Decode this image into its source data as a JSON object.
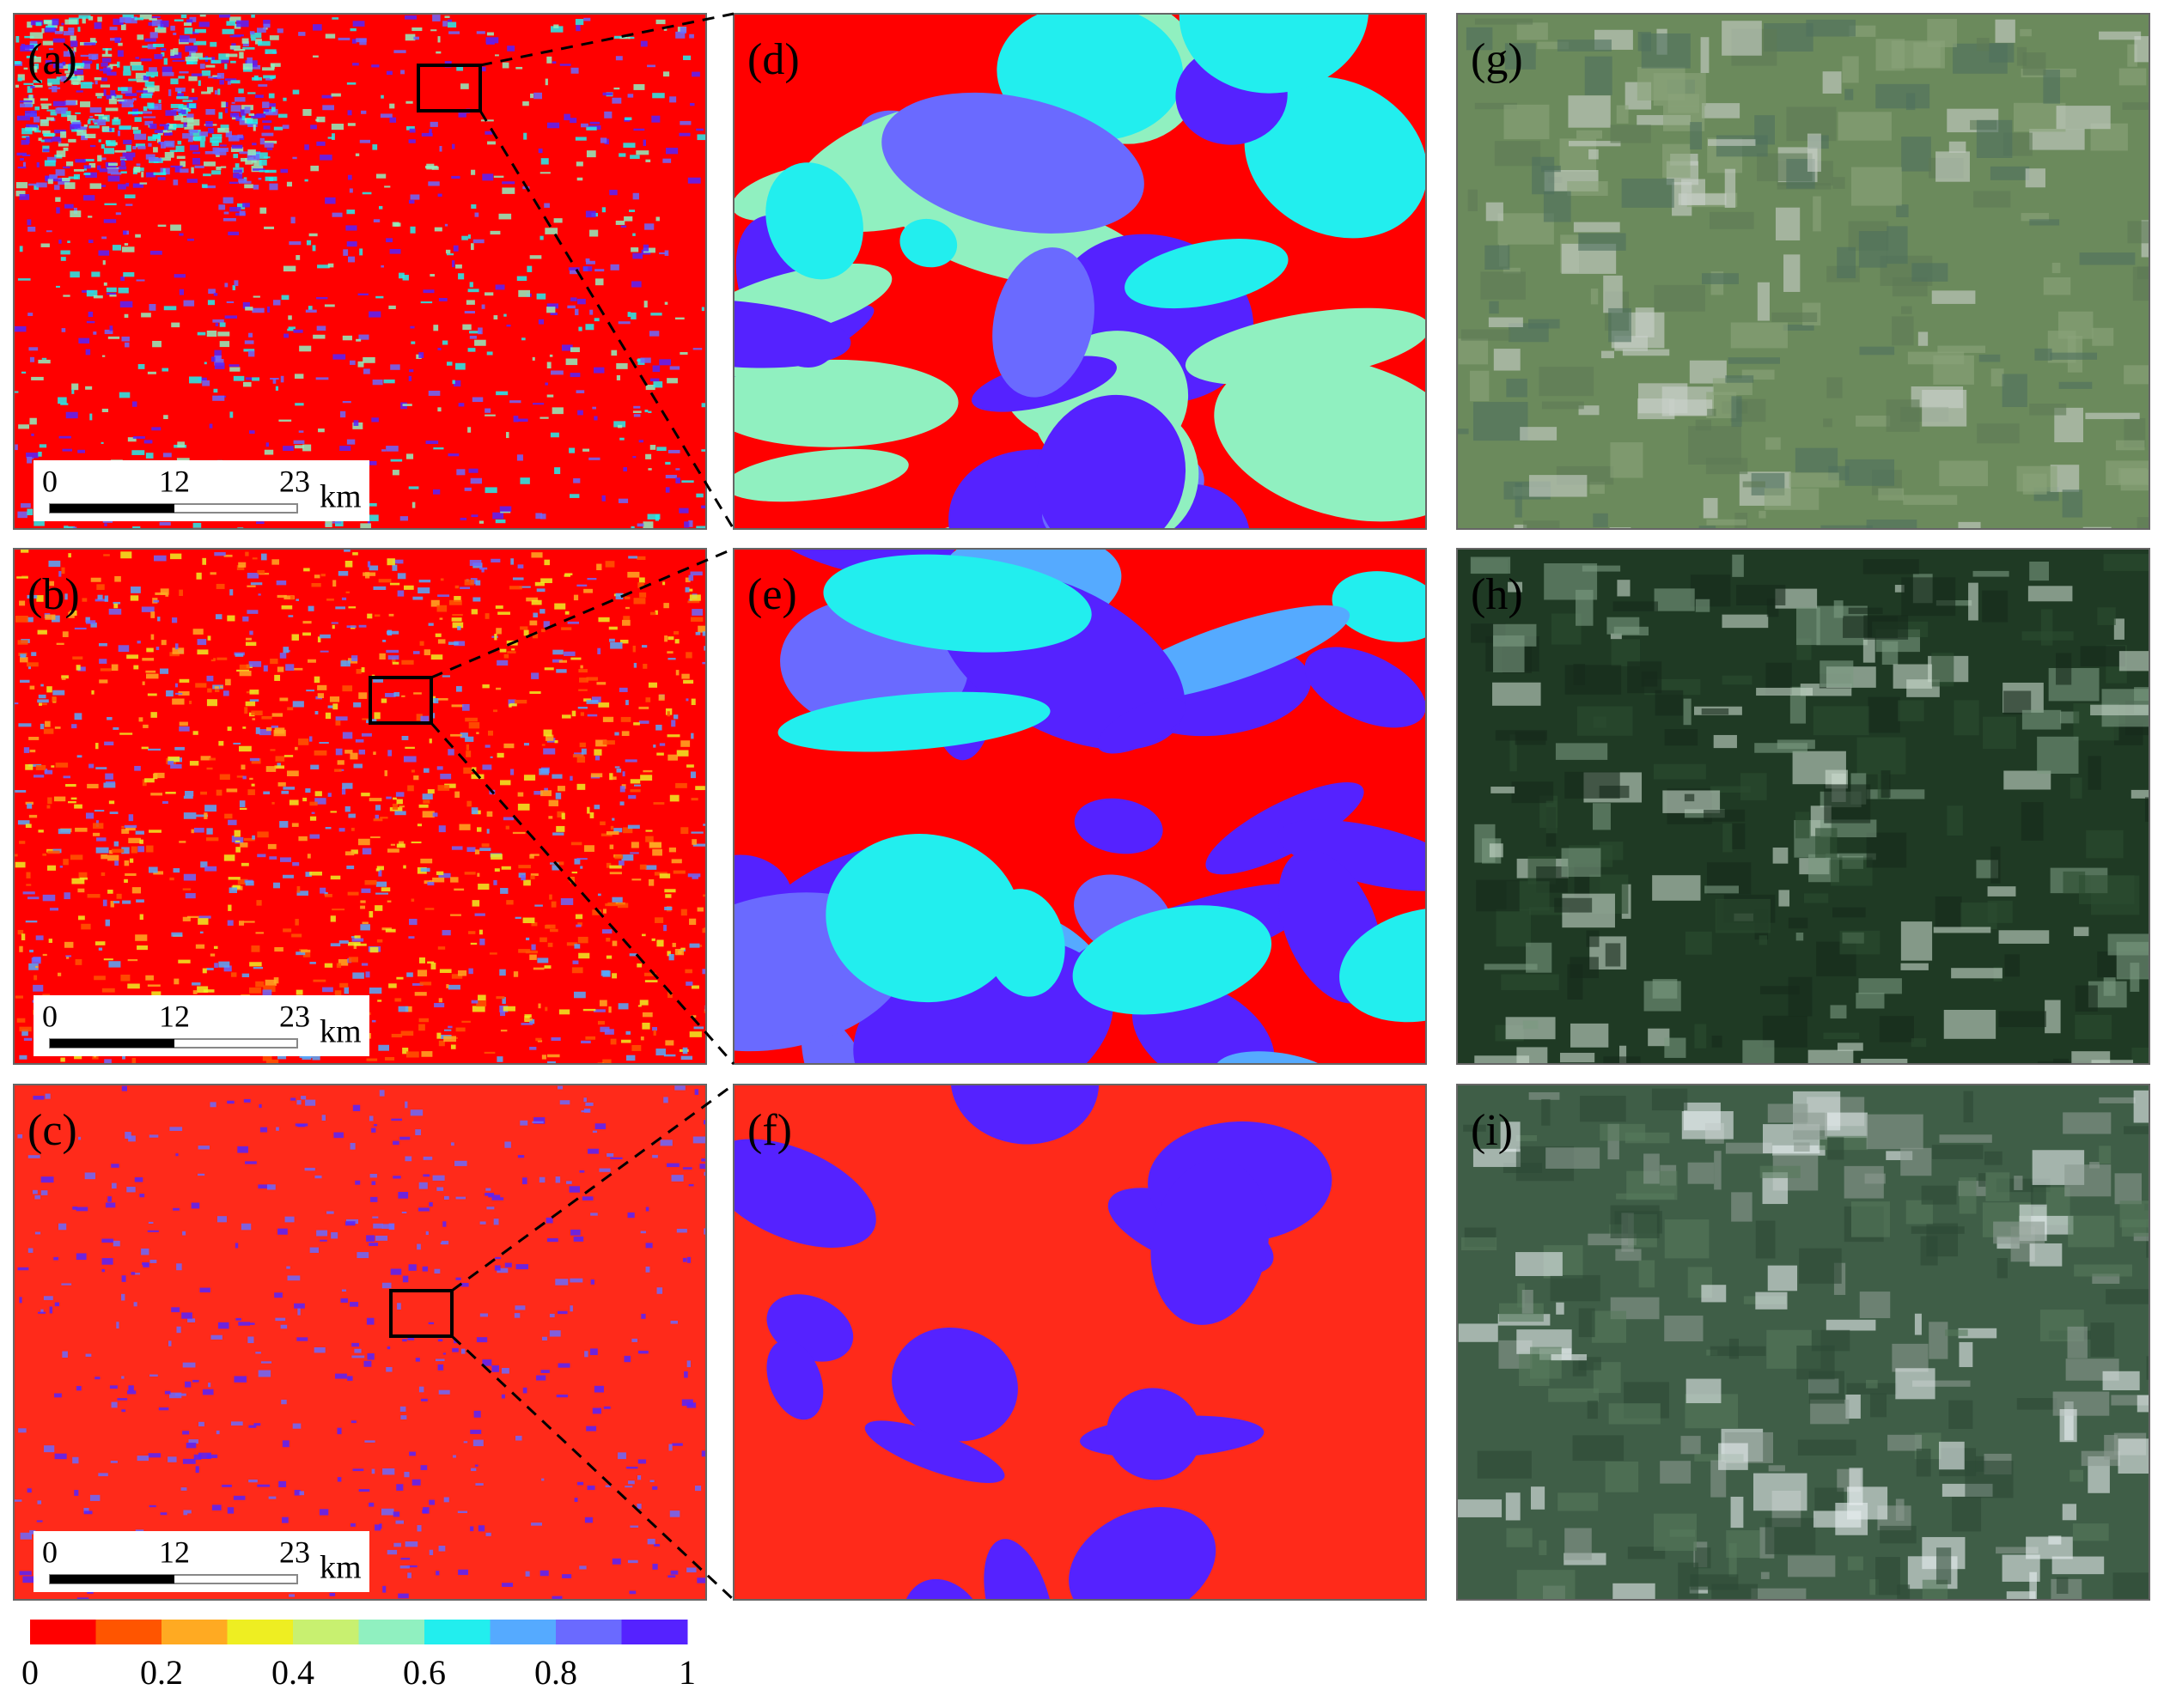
{
  "panels": [
    {
      "label": "(a)",
      "scale_bar": {
        "labels": [
          "0",
          "12",
          "23"
        ],
        "unit": "km"
      }
    },
    {
      "label": "(b)",
      "scale_bar": {
        "labels": [
          "0",
          "12",
          "23"
        ],
        "unit": "km"
      }
    },
    {
      "label": "(c)",
      "scale_bar": {
        "labels": [
          "0",
          "12",
          "23"
        ],
        "unit": "km"
      }
    },
    {
      "label": "(d)"
    },
    {
      "label": "(e)"
    },
    {
      "label": "(f)"
    },
    {
      "label": "(g)"
    },
    {
      "label": "(h)"
    },
    {
      "label": "(i)"
    }
  ],
  "colorbar": {
    "range": [
      0,
      1
    ],
    "ticks": [
      0,
      0.2,
      0.4,
      0.6,
      0.8,
      1
    ],
    "colors": [
      "#ff0000",
      "#ff5500",
      "#ffaa22",
      "#eeee22",
      "#c8f070",
      "#90f0c0",
      "#22eeee",
      "#55aaff",
      "#6a6aff",
      "#5522ff"
    ]
  }
}
